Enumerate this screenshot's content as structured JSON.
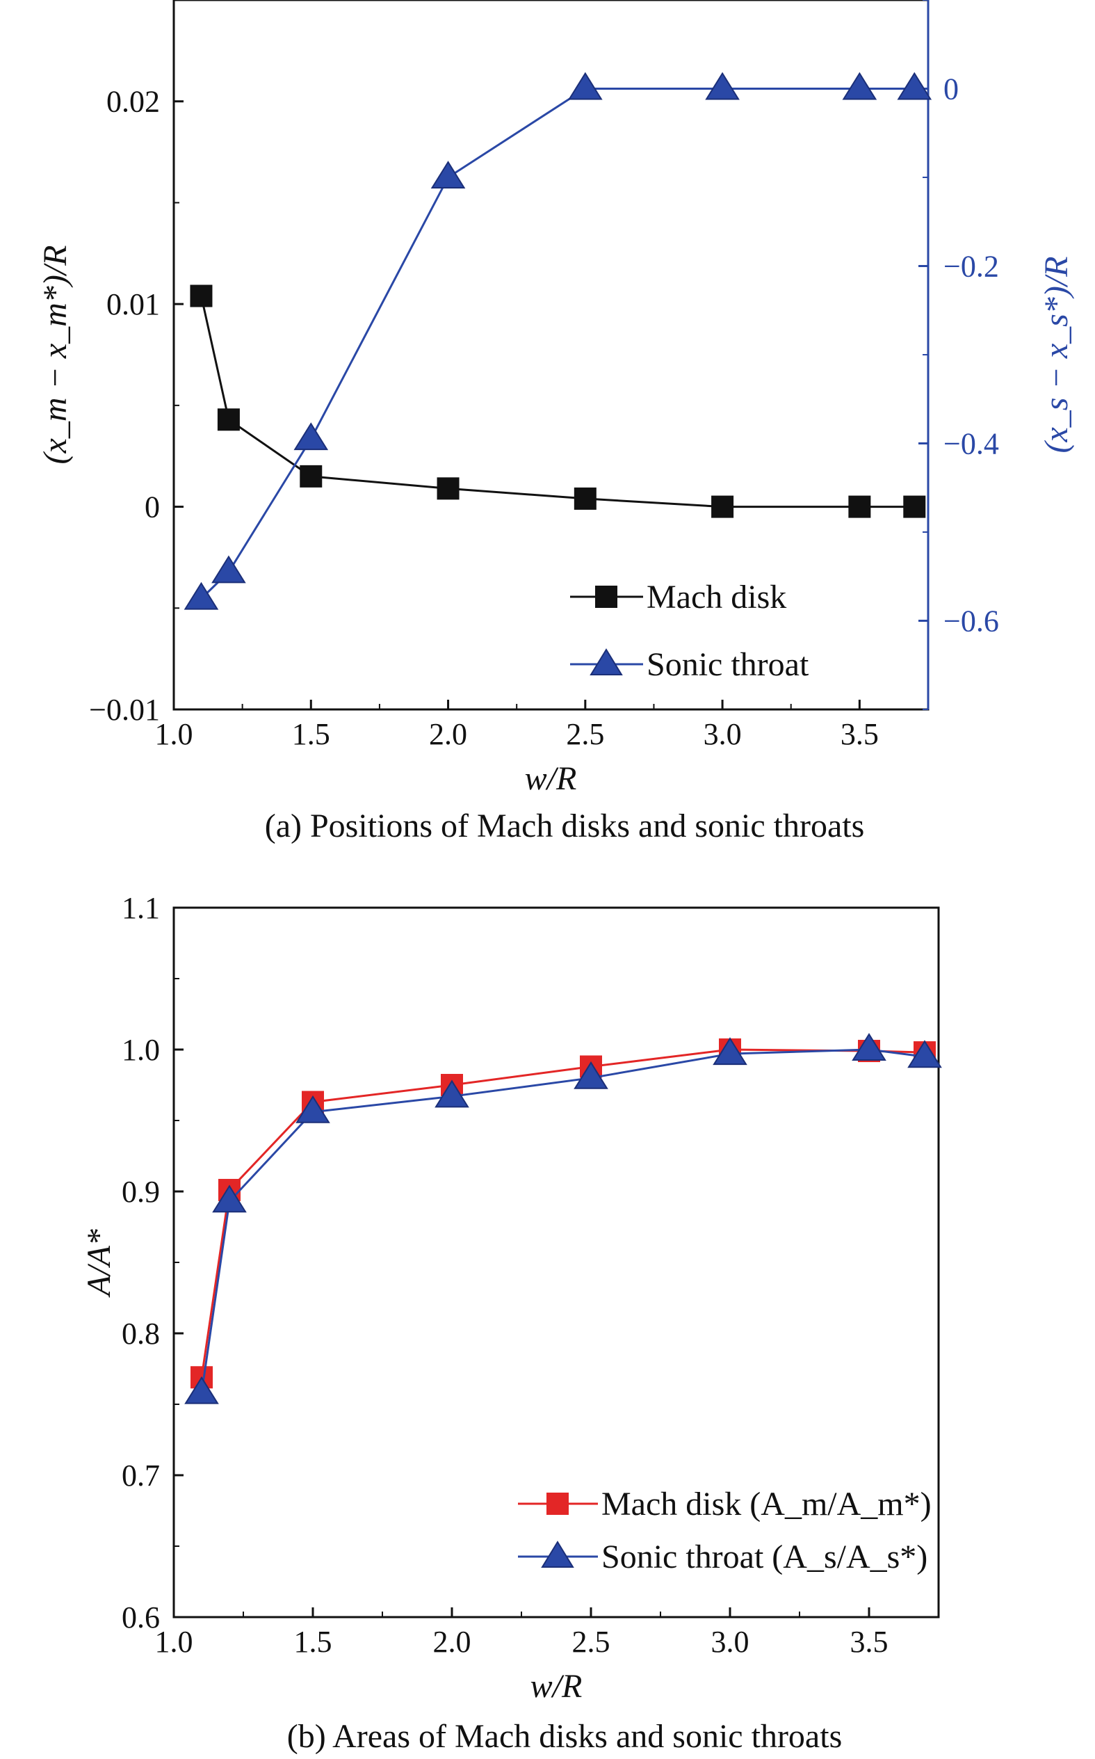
{
  "chart_data": [
    {
      "type": "line",
      "caption": "(a) Positions of Mach disks and sonic throats",
      "xlabel": "w/R",
      "ylabel_left": "(x_m − x_m*)/R",
      "ylabel_right": "(x_s − x_s*)/R",
      "xlim": [
        1.0,
        3.75
      ],
      "ylim_left": [
        -0.01,
        0.025
      ],
      "ylim_right": [
        -0.7,
        0.1
      ],
      "x_ticks": [
        "1.0",
        "1.5",
        "2.0",
        "2.5",
        "3.0",
        "3.5"
      ],
      "y_left_ticks": [
        {
          "value": -0.01,
          "label": "−0.01"
        },
        {
          "value": 0,
          "label": "0"
        },
        {
          "value": 0.01,
          "label": "0.01"
        },
        {
          "value": 0.02,
          "label": "0.02"
        }
      ],
      "y_right_ticks": [
        {
          "value": -0.6,
          "label": "−0.6"
        },
        {
          "value": -0.4,
          "label": "−0.4"
        },
        {
          "value": -0.2,
          "label": "−0.2"
        },
        {
          "value": 0,
          "label": "0"
        }
      ],
      "series": [
        {
          "name": "Mach disk",
          "axis": "left",
          "marker": "square",
          "color": "#111111",
          "x": [
            1.1,
            1.2,
            1.5,
            2.0,
            2.5,
            3.0,
            3.5,
            3.7
          ],
          "values": [
            0.0104,
            0.0043,
            0.0015,
            0.0009,
            0.0004,
            0.0,
            0.0,
            0.0
          ]
        },
        {
          "name": "Sonic throat",
          "axis": "right",
          "marker": "triangle",
          "color": "#2a48a6",
          "x": [
            1.1,
            1.2,
            1.5,
            2.0,
            2.5,
            3.0,
            3.5,
            3.7
          ],
          "values": [
            -0.575,
            -0.545,
            -0.395,
            -0.1,
            0.0,
            0.0,
            0.0,
            0.0
          ]
        }
      ],
      "legend": "bottom-right"
    },
    {
      "type": "line",
      "caption": "(b) Areas of Mach disks and sonic throats",
      "xlabel": "w/R",
      "ylabel": "A/A*",
      "xlim": [
        1.0,
        3.75
      ],
      "ylim": [
        0.6,
        1.1
      ],
      "x_ticks": [
        "1.0",
        "1.5",
        "2.0",
        "2.5",
        "3.0",
        "3.5"
      ],
      "y_ticks": [
        {
          "value": 0.6,
          "label": "0.6"
        },
        {
          "value": 0.7,
          "label": "0.7"
        },
        {
          "value": 0.8,
          "label": "0.8"
        },
        {
          "value": 0.9,
          "label": "0.9"
        },
        {
          "value": 1.0,
          "label": "1.0"
        },
        {
          "value": 1.1,
          "label": "1.1"
        }
      ],
      "series": [
        {
          "name": "Mach disk (A_m/A_m*)",
          "marker": "square",
          "color": "#e32626",
          "x": [
            1.1,
            1.2,
            1.5,
            2.0,
            2.5,
            3.0,
            3.5,
            3.7
          ],
          "values": [
            0.769,
            0.901,
            0.963,
            0.975,
            0.988,
            1.0,
            0.999,
            0.998
          ]
        },
        {
          "name": "Sonic throat (A_s/A_s*)",
          "marker": "triangle",
          "color": "#2a48a6",
          "x": [
            1.1,
            1.2,
            1.5,
            2.0,
            2.5,
            3.0,
            3.5,
            3.7
          ],
          "values": [
            0.758,
            0.893,
            0.956,
            0.967,
            0.98,
            0.997,
            1.0,
            0.995
          ]
        }
      ],
      "legend": "bottom-right"
    }
  ]
}
